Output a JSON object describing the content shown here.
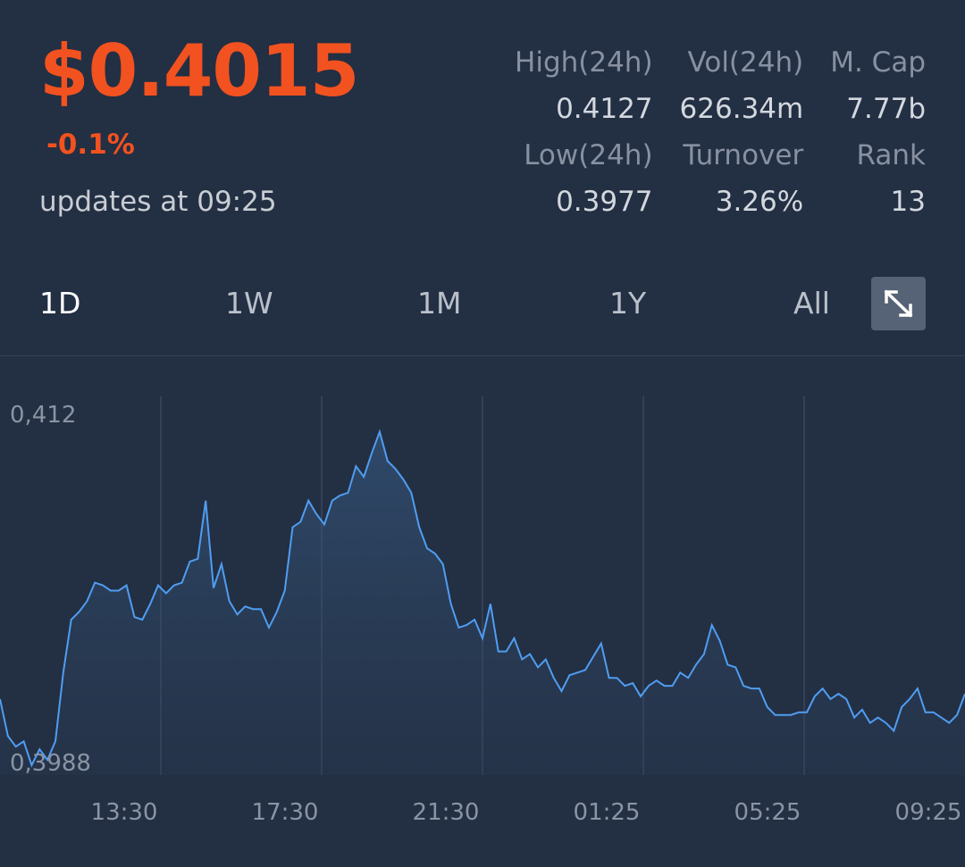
{
  "price": "$0.4015",
  "change": "-0.1%",
  "updates": "updates at 09:25",
  "stats": {
    "high_label": "High(24h)",
    "high_value": "0.4127",
    "vol_label": "Vol(24h)",
    "vol_value": "626.34m",
    "mcap_label": "M. Cap",
    "mcap_value": "7.77b",
    "low_label": "Low(24h)",
    "low_value": "0.3977",
    "turnover_label": "Turnover",
    "turnover_value": "3.26%",
    "rank_label": "Rank",
    "rank_value": "13"
  },
  "periods": [
    "1D",
    "1W",
    "1M",
    "1Y",
    "All"
  ],
  "active_period": "1D",
  "expand_icon": "expand-arrows-icon",
  "colors": {
    "background": "#232f43",
    "accent_negative": "#f2521f",
    "line": "#4f9df2",
    "grid": "#3a475c"
  },
  "chart_data": {
    "type": "area",
    "ylim": [
      0.3988,
      0.412
    ],
    "yticks": [
      "0,412",
      "0,3988"
    ],
    "xticks": [
      "13:30",
      "17:30",
      "21:30",
      "01:25",
      "05:25",
      "09:25"
    ],
    "series": [
      {
        "values": [
          0.4012,
          0.3998,
          0.3994,
          0.3996,
          0.3987,
          0.3993,
          0.3989,
          0.3996,
          0.4022,
          0.4042,
          0.4045,
          0.4049,
          0.4056,
          0.4055,
          0.4053,
          0.4053,
          0.4055,
          0.4043,
          0.4042,
          0.4048,
          0.4055,
          0.4052,
          0.4055,
          0.4056,
          0.4064,
          0.4065,
          0.4087,
          0.4054,
          0.4063,
          0.4049,
          0.4044,
          0.4047,
          0.4046,
          0.4046,
          0.4039,
          0.4045,
          0.4053,
          0.4077,
          0.4079,
          0.4087,
          0.4082,
          0.4078,
          0.4087,
          0.4089,
          0.409,
          0.41,
          0.4096,
          0.4105,
          0.4113,
          0.4102,
          0.4099,
          0.4095,
          0.409,
          0.4077,
          0.4069,
          0.4067,
          0.4063,
          0.4048,
          0.4039,
          0.404,
          0.4042,
          0.4035,
          0.4048,
          0.403,
          0.403,
          0.4035,
          0.4027,
          0.4029,
          0.4024,
          0.4027,
          0.402,
          0.4015,
          0.4021,
          0.4022,
          0.4023,
          0.4028,
          0.4033,
          0.402,
          0.402,
          0.4017,
          0.4018,
          0.4013,
          0.4017,
          0.4019,
          0.4017,
          0.4017,
          0.4022,
          0.402,
          0.4025,
          0.4029,
          0.404,
          0.4034,
          0.4025,
          0.4024,
          0.4017,
          0.4016,
          0.4016,
          0.4009,
          0.4006,
          0.4006,
          0.4006,
          0.4007,
          0.4007,
          0.4013,
          0.4016,
          0.4012,
          0.4014,
          0.4012,
          0.4005,
          0.4008,
          0.4003,
          0.4005,
          0.4003,
          0.4,
          0.4009,
          0.4012,
          0.4016,
          0.4007,
          0.4007,
          0.4005,
          0.4003,
          0.4006,
          0.4014
        ]
      }
    ]
  }
}
